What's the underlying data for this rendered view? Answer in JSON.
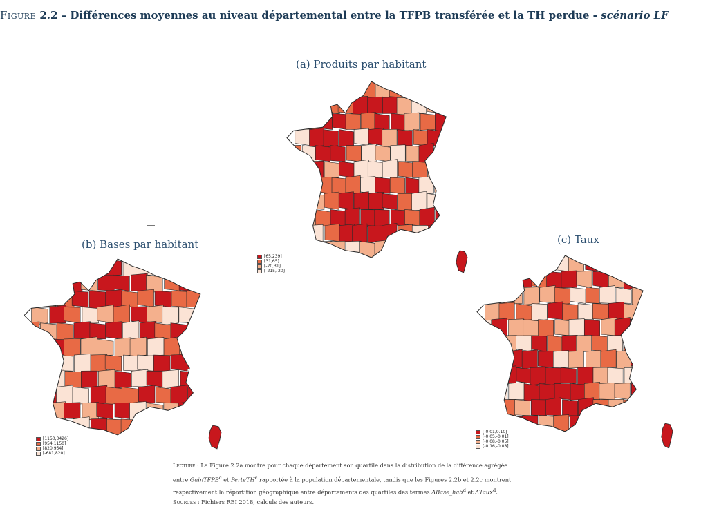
{
  "figure": {
    "label": "Figure",
    "number": "2.2 –",
    "title_main": "Différences moyennes au niveau départemental entre la TFPB transférée et la TH perdue -",
    "title_scenario": "scénario LF"
  },
  "panels": [
    {
      "id": "a",
      "title": "(a) Produits par habitant",
      "legend": [
        "[65,239]",
        "[31,65]",
        "[-20,31]",
        "[-215,-20]"
      ]
    },
    {
      "id": "b",
      "title": "(b) Bases par habitant",
      "legend": [
        "[1150,3426]",
        "[954,1150]",
        "[820,954]",
        "[-681,820]"
      ]
    },
    {
      "id": "c",
      "title": "(c) Taux",
      "legend": [
        "[-0.01,0.10]",
        "[-0.05,-0.01]",
        "[-0.08,-0.05]",
        "[-0.16,-0.08]"
      ]
    }
  ],
  "colors": {
    "q4": "#c8171d",
    "q3": "#e86a45",
    "q2": "#f4b08d",
    "q1": "#fbe3d5",
    "border": "#2a2a2a"
  },
  "note": {
    "lecture_label": "Lecture :",
    "line1": "La Figure 2.2a montre pour chaque département son quartile dans la distribution de la différence agrégée",
    "line2_a": "entre",
    "line2_var1": "GainTFPB",
    "line2_sup1": "c",
    "line2_b": "et",
    "line2_var2": "PerteTH",
    "line2_sup2": "c",
    "line2_c": "rapportée à la population départementale, tandis que les Figures 2.2b et 2.2c montrent",
    "line3_a": "respectivement la répartition géographique entre départements des quartiles des termes",
    "line3_var1": "ΔBase_hab",
    "line3_sup1": "d",
    "line3_b": "et",
    "line3_var2": "ΔTaux",
    "line3_sup2": "d",
    "line3_c": ".",
    "sources_label": "Sources :",
    "sources_text": "Fichiers REI 2018, calculs des auteurs."
  }
}
